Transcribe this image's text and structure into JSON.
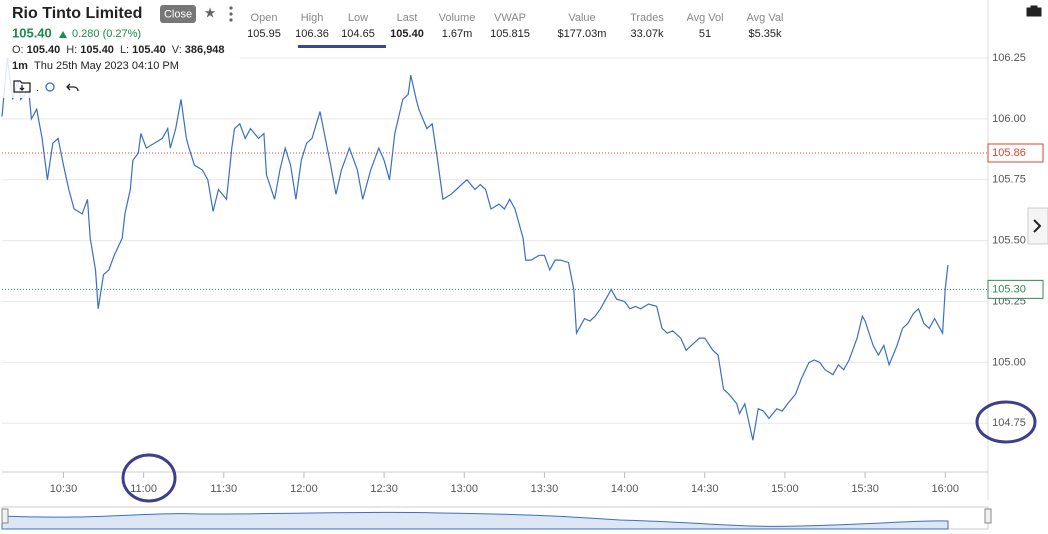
{
  "header": {
    "title": "Rio Tinto Limited",
    "button": "Close",
    "price": "105.40",
    "change": "0.280 (0.27%)",
    "ohlcv": [
      {
        "label": "O:",
        "value": "105.40"
      },
      {
        "label": "H:",
        "value": "105.40"
      },
      {
        "label": "L:",
        "value": "105.40"
      },
      {
        "label": "V:",
        "value": "386,948"
      }
    ],
    "interval": "1m",
    "timestamp": "Thu 25th May 2023 04:10 PM",
    "stats": [
      {
        "label": "Open",
        "value": "105.95"
      },
      {
        "label": "High",
        "value": "106.36"
      },
      {
        "label": "Low",
        "value": "104.65"
      },
      {
        "label": "Last",
        "value": "105.40"
      },
      {
        "label": "Volume",
        "value": "1.67m"
      },
      {
        "label": "VWAP",
        "value": "105.815"
      },
      {
        "label": "Value",
        "value": "$177.03m"
      },
      {
        "label": "Trades",
        "value": "33.07k"
      },
      {
        "label": "Avg Vol",
        "value": "51"
      },
      {
        "label": "Avg Val",
        "value": "$5.35k"
      }
    ]
  },
  "chart_data": {
    "type": "line",
    "color": "#3a6fc4",
    "x": [
      607,
      609,
      611,
      613,
      614,
      617,
      618,
      620,
      622,
      624,
      626,
      628,
      630,
      632,
      634,
      637,
      639,
      640,
      642,
      643,
      645,
      647,
      649,
      652,
      653,
      655,
      656,
      658,
      659,
      661,
      664,
      667,
      669,
      670,
      672,
      674,
      676,
      677,
      679,
      682,
      684,
      686,
      688,
      691,
      693,
      694,
      696,
      698,
      700,
      703,
      705,
      706,
      709,
      711,
      713,
      715,
      717,
      719,
      721,
      723,
      726,
      728,
      730,
      732,
      734,
      737,
      740,
      742,
      745,
      748,
      750,
      752,
      754,
      757,
      759,
      760,
      762,
      763,
      766,
      768,
      770,
      772,
      775,
      777,
      779,
      781,
      784,
      786,
      788,
      790,
      793,
      795,
      797,
      799,
      802,
      803,
      805,
      808,
      810,
      812,
      814,
      816,
      819,
      821,
      822,
      825,
      827,
      829,
      831,
      834,
      835,
      837,
      840,
      842,
      844,
      846,
      849,
      852,
      854,
      856,
      858,
      861,
      863,
      865,
      868,
      870,
      873,
      875,
      877,
      879,
      882,
      883,
      885,
      888,
      890,
      892,
      894,
      897,
      899,
      901,
      904,
      906,
      909,
      911,
      913,
      915,
      918,
      920,
      922,
      924,
      927,
      929,
      930,
      933,
      935,
      937,
      939,
      942,
      944,
      946,
      948,
      950,
      952,
      954,
      956,
      958,
      959,
      960,
      961
    ],
    "values": [
      106.01,
      106.25,
      106.08,
      106.16,
      106.08,
      106.12,
      106.0,
      106.04,
      105.92,
      105.75,
      105.9,
      105.92,
      105.81,
      105.71,
      105.63,
      105.61,
      105.67,
      105.51,
      105.38,
      105.22,
      105.36,
      105.38,
      105.44,
      105.51,
      105.61,
      105.71,
      105.83,
      105.86,
      105.94,
      105.88,
      105.9,
      105.92,
      105.96,
      105.88,
      105.96,
      106.08,
      105.92,
      105.88,
      105.81,
      105.79,
      105.75,
      105.62,
      105.71,
      105.67,
      105.88,
      105.96,
      105.98,
      105.92,
      105.96,
      105.92,
      105.94,
      105.77,
      105.67,
      105.79,
      105.88,
      105.81,
      105.67,
      105.83,
      105.9,
      105.92,
      106.03,
      105.92,
      105.81,
      105.69,
      105.79,
      105.88,
      105.79,
      105.67,
      105.79,
      105.88,
      105.83,
      105.75,
      105.94,
      106.08,
      106.1,
      106.18,
      106.08,
      106.04,
      105.96,
      105.98,
      105.83,
      105.67,
      105.69,
      105.71,
      105.73,
      105.75,
      105.71,
      105.73,
      105.71,
      105.63,
      105.65,
      105.63,
      105.67,
      105.63,
      105.51,
      105.42,
      105.42,
      105.44,
      105.44,
      105.38,
      105.42,
      105.42,
      105.41,
      105.3,
      105.12,
      105.18,
      105.17,
      105.19,
      105.22,
      105.28,
      105.3,
      105.26,
      105.25,
      105.22,
      105.23,
      105.22,
      105.24,
      105.23,
      105.14,
      105.12,
      105.13,
      105.1,
      105.05,
      105.07,
      105.1,
      105.1,
      105.05,
      105.03,
      104.89,
      104.87,
      104.83,
      104.79,
      104.83,
      104.68,
      104.81,
      104.8,
      104.77,
      104.81,
      104.8,
      104.83,
      104.87,
      104.93,
      105.0,
      105.01,
      105.0,
      104.97,
      104.95,
      104.99,
      104.97,
      105.01,
      105.1,
      105.19,
      105.17,
      105.07,
      105.03,
      105.07,
      104.99,
      105.07,
      105.14,
      105.16,
      105.2,
      105.22,
      105.16,
      105.14,
      105.18,
      105.14,
      105.12,
      105.3,
      105.4
    ],
    "xlim": [
      607,
      976
    ],
    "ylim": [
      104.55,
      106.48
    ],
    "xticks": [
      {
        "value": 630,
        "label": "10:30"
      },
      {
        "value": 660,
        "label": "11:00"
      },
      {
        "value": 690,
        "label": "11:30"
      },
      {
        "value": 720,
        "label": "12:00"
      },
      {
        "value": 750,
        "label": "12:30"
      },
      {
        "value": 780,
        "label": "13:00"
      },
      {
        "value": 810,
        "label": "13:30"
      },
      {
        "value": 840,
        "label": "14:00"
      },
      {
        "value": 870,
        "label": "14:30"
      },
      {
        "value": 900,
        "label": "15:00"
      },
      {
        "value": 930,
        "label": "15:30"
      },
      {
        "value": 960,
        "label": "16:00"
      }
    ],
    "yticks": [
      104.75,
      {
        "value": 105,
        "label": "105.00"
      },
      105.25,
      {
        "value": 105.5,
        "label": "105.50"
      },
      105.75,
      {
        "value": 106,
        "label": "106.00"
      },
      106.25
    ],
    "grid": true,
    "ref_lines": [
      {
        "value": 105.86,
        "color": "#d9452b"
      },
      {
        "value": 105.3,
        "label": "105.30",
        "color": "#2e8b57"
      }
    ]
  }
}
